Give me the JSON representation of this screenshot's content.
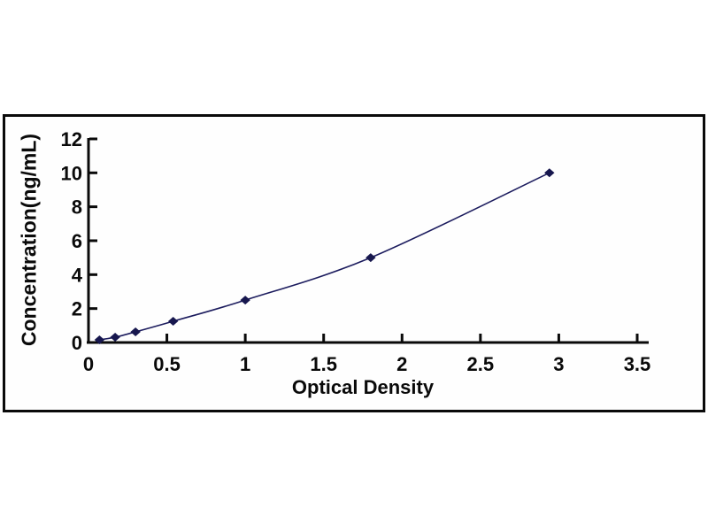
{
  "chart_frame": {
    "border_color": "#0a0a0a",
    "background": "#fefefe"
  },
  "chart_data": {
    "type": "line",
    "title": "",
    "xlabel": "Optical Density",
    "ylabel": "Concentration(ng/mL)",
    "x": [
      0.07,
      0.17,
      0.3,
      0.54,
      1.0,
      1.8,
      2.94
    ],
    "y": [
      0.156,
      0.312,
      0.625,
      1.25,
      2.5,
      5,
      10
    ],
    "xlim": [
      0,
      3.5
    ],
    "ylim": [
      0,
      12
    ],
    "x_ticks": [
      0,
      0.5,
      1,
      1.5,
      2,
      2.5,
      3,
      3.5
    ],
    "y_ticks": [
      0,
      2,
      4,
      6,
      8,
      10,
      12
    ],
    "grid": false,
    "legend": "none",
    "smooth": true,
    "marker": "diamond",
    "line_color": "#1c1c5e",
    "marker_color": "#17174e",
    "axis_color": "#0a0a0a"
  }
}
